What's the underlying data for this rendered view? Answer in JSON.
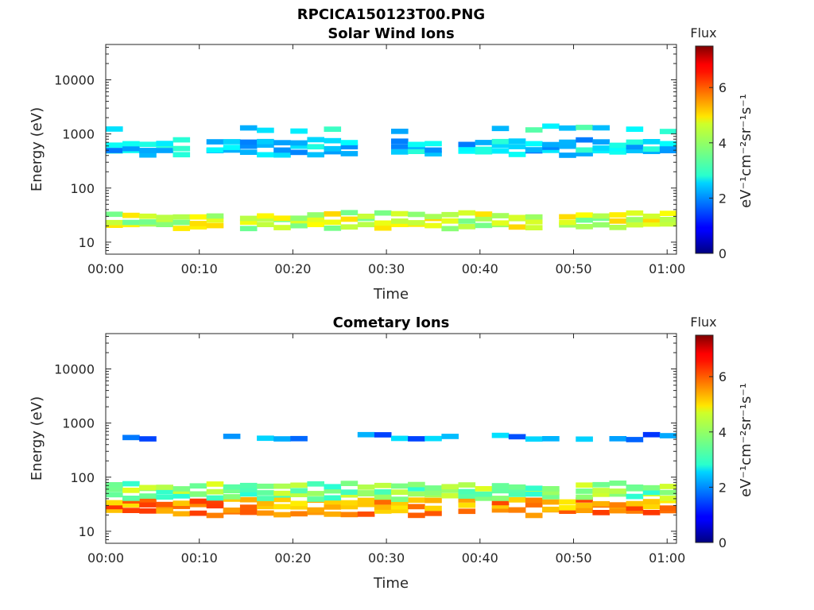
{
  "figure": {
    "title": "RPCICA150123T00.PNG"
  },
  "chart_data": [
    {
      "type": "heatmap",
      "title": "Solar Wind Ions",
      "xlabel": "Time",
      "ylabel": "Energy (eV)",
      "x_range_minutes": [
        0,
        61
      ],
      "x_ticks": [
        "00:00",
        "00:10",
        "00:20",
        "00:30",
        "00:40",
        "00:50",
        "01:00"
      ],
      "y_range_eV": [
        6,
        45000
      ],
      "y_scale": "log",
      "y_ticks": [
        "10",
        "100",
        "1000",
        "10000"
      ],
      "colorbar": {
        "label": "Flux",
        "units": "eV⁻¹cm⁻²sr⁻¹s⁻¹",
        "range": [
          0,
          7.5
        ],
        "ticks": [
          "0",
          "2",
          "4",
          "6"
        ],
        "colormap": "jet"
      },
      "bands": [
        {
          "center_eV": 560,
          "approx_flux": 2.5
        },
        {
          "center_eV": 25,
          "approx_flux": 4.3
        },
        {
          "center_eV": 1250,
          "approx_flux": 2.8,
          "sparse": true
        }
      ]
    },
    {
      "type": "heatmap",
      "title": "Cometary Ions",
      "xlabel": "Time",
      "ylabel": "Energy (eV)",
      "x_range_minutes": [
        0,
        61
      ],
      "x_ticks": [
        "00:00",
        "00:10",
        "00:20",
        "00:30",
        "00:40",
        "00:50",
        "01:00"
      ],
      "y_range_eV": [
        6,
        45000
      ],
      "y_scale": "log",
      "y_ticks": [
        "10",
        "100",
        "1000",
        "10000"
      ],
      "colorbar": {
        "label": "Flux",
        "units": "eV⁻¹cm⁻²sr⁻¹s⁻¹",
        "range": [
          0,
          7.5
        ],
        "ticks": [
          "0",
          "2",
          "4",
          "6"
        ],
        "colormap": "jet"
      },
      "bands": [
        {
          "center_eV": 550,
          "approx_flux": 2.0,
          "sparse": true
        },
        {
          "center_eV": 28,
          "approx_flux": 5.5
        },
        {
          "center_eV": 55,
          "approx_flux": 3.8
        }
      ]
    }
  ]
}
